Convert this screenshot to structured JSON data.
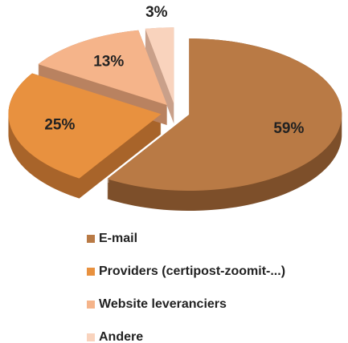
{
  "chart_data": {
    "type": "pie",
    "categories": [
      "E-mail",
      "Providers (certipost-zoomit-...)",
      "Website leveranciers",
      "Andere"
    ],
    "values": [
      59,
      25,
      13,
      3
    ],
    "value_labels": [
      "59%",
      "25%",
      "13%",
      "3%"
    ],
    "colors": [
      "#b97a45",
      "#e8913f",
      "#f5b48a",
      "#f9d3bd"
    ],
    "side_colors": [
      "#7d4f2a",
      "#a8642a",
      "#b98260",
      "#c9a08a"
    ],
    "legend": "bottom"
  }
}
